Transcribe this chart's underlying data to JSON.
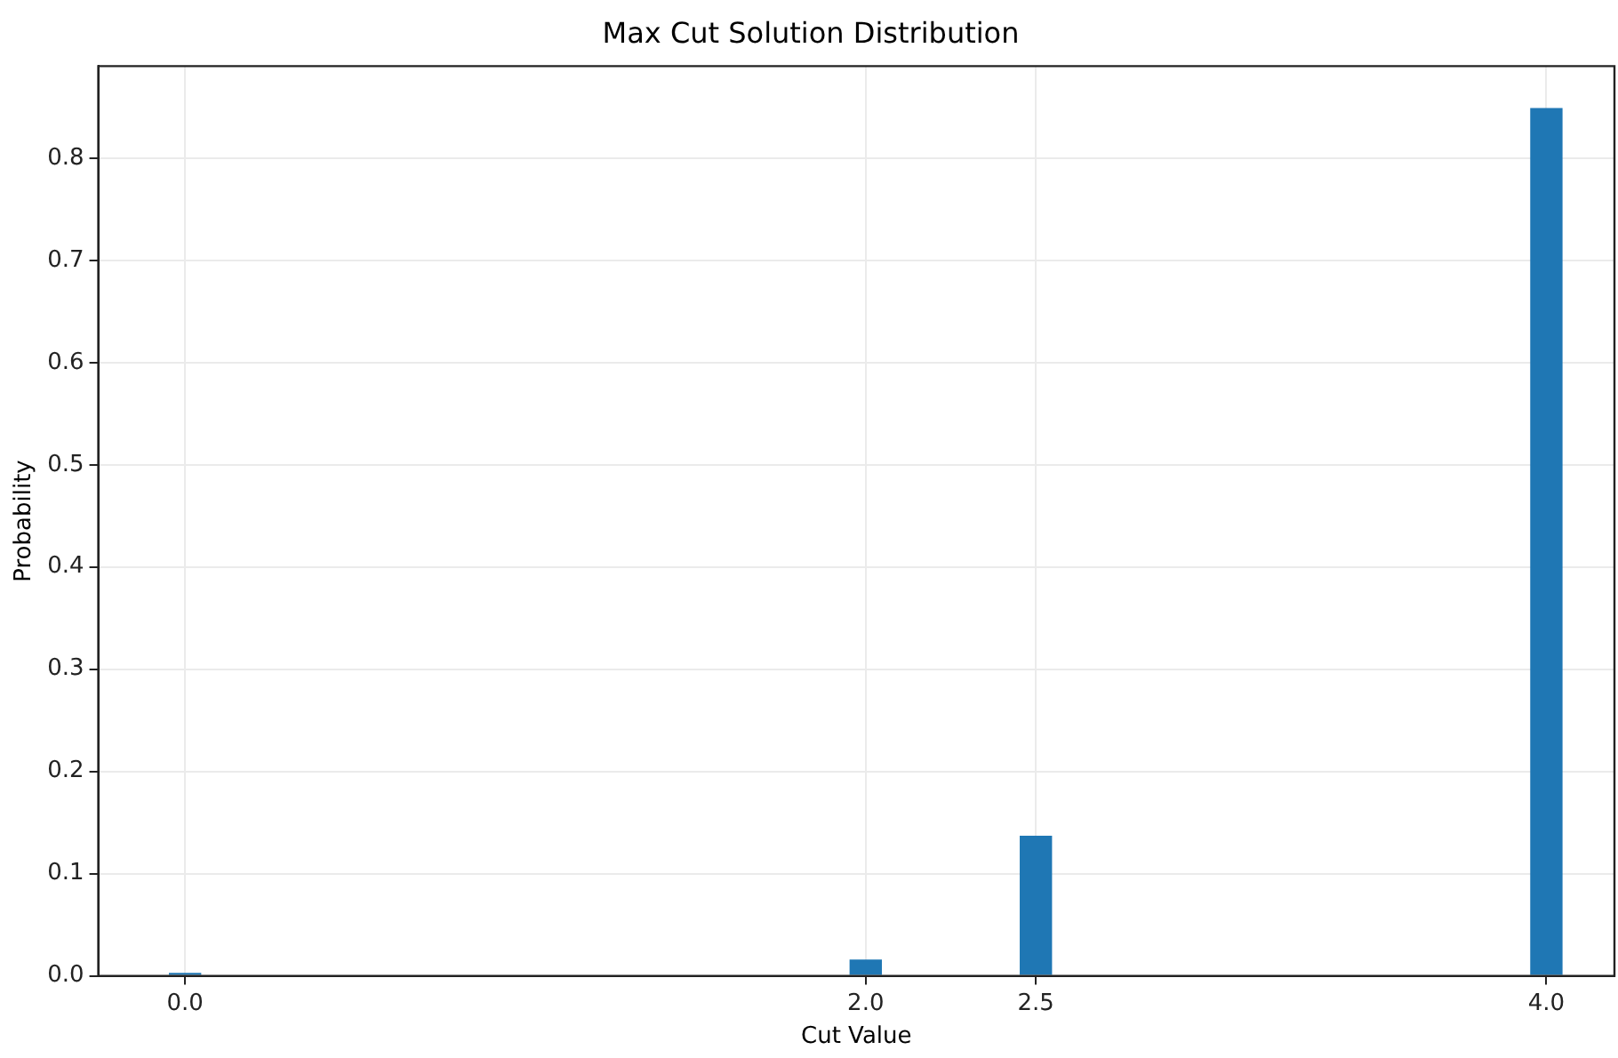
{
  "chart_data": {
    "type": "bar",
    "title": "Max Cut Solution Distribution",
    "xlabel": "Cut Value",
    "ylabel": "Probability",
    "x": [
      0,
      2,
      2.5,
      4
    ],
    "values": [
      0.003,
      0.016,
      0.137,
      0.849
    ],
    "color": "#1f77b4",
    "xlim": [
      -0.255,
      4.2
    ],
    "xticks": [
      {
        "value": 0,
        "label": "0.0"
      },
      {
        "value": 2,
        "label": "2.0"
      },
      {
        "value": 2.5,
        "label": "2.5"
      },
      {
        "value": 4,
        "label": "4.0"
      }
    ],
    "ylim": [
      0,
      0.89
    ],
    "yticks": [
      {
        "value": 0,
        "label": "0.0"
      },
      {
        "value": 0.1,
        "label": "0.1"
      },
      {
        "value": 0.2,
        "label": "0.2"
      },
      {
        "value": 0.3,
        "label": "0.3"
      },
      {
        "value": 0.4,
        "label": "0.4"
      },
      {
        "value": 0.5,
        "label": "0.5"
      },
      {
        "value": 0.6,
        "label": "0.6"
      },
      {
        "value": 0.7,
        "label": "0.7"
      },
      {
        "value": 0.8,
        "label": "0.8"
      }
    ],
    "grid": true
  }
}
